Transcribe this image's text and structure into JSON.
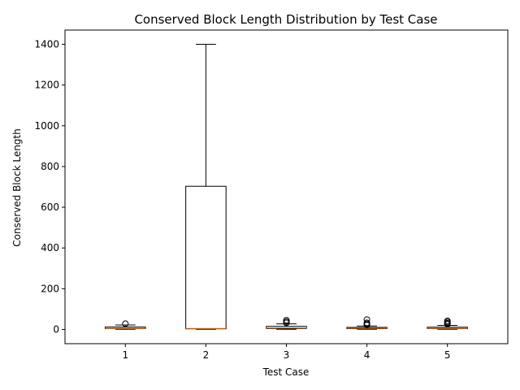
{
  "chart_data": {
    "type": "box",
    "title": "Conserved Block Length Distribution by Test Case",
    "xlabel": "Test Case",
    "ylabel": "Conserved Block Length",
    "categories": [
      "1",
      "2",
      "3",
      "4",
      "5"
    ],
    "ylim": [
      -70,
      1470
    ],
    "yticks": [
      0,
      200,
      400,
      600,
      800,
      1000,
      1200,
      1400
    ],
    "grid": false,
    "colors": {
      "box": "#000000",
      "median": "#ff7f0e",
      "background": "#ffffff"
    },
    "boxes": [
      {
        "category": "1",
        "whisker_low": 1,
        "q1": 4,
        "median": 6,
        "q3": 12,
        "whisker_high": 22,
        "outliers": [
          28
        ]
      },
      {
        "category": "2",
        "whisker_low": 1,
        "q1": 3,
        "median": 5,
        "q3": 703,
        "whisker_high": 1400,
        "outliers": []
      },
      {
        "category": "3",
        "whisker_low": 1,
        "q1": 5,
        "median": 8,
        "q3": 15,
        "whisker_high": 27,
        "outliers": [
          32,
          38,
          45
        ]
      },
      {
        "category": "4",
        "whisker_low": 1,
        "q1": 4,
        "median": 6,
        "q3": 10,
        "whisker_high": 17,
        "outliers": [
          22,
          27,
          32,
          48
        ]
      },
      {
        "category": "5",
        "whisker_low": 1,
        "q1": 4,
        "median": 6,
        "q3": 11,
        "whisker_high": 20,
        "outliers": [
          26,
          30,
          36,
          42
        ]
      }
    ]
  }
}
